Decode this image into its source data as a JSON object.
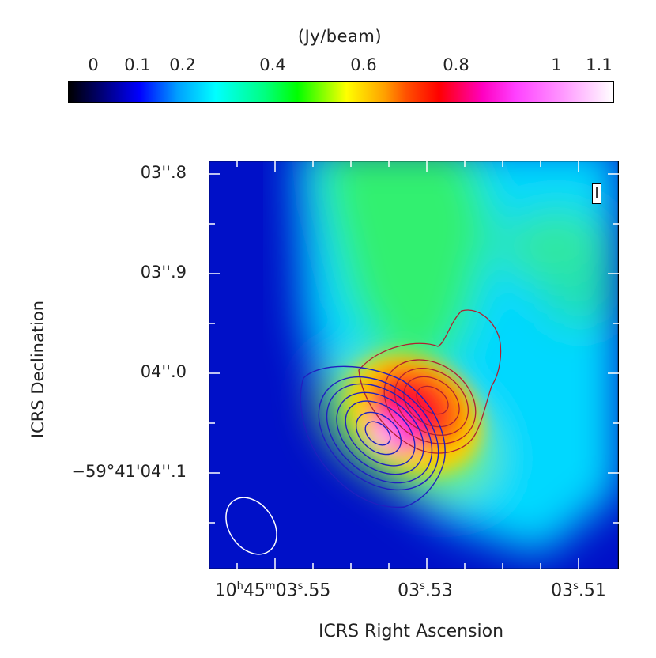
{
  "colorbar": {
    "unit_label": "(Jy/beam)",
    "ticks": [
      "0",
      "0.1",
      "0.2",
      "0.4",
      "0.6",
      "0.8",
      "1",
      "1.1"
    ]
  },
  "map": {
    "stokes_label": "I",
    "y_axis_title": "ICRS Declination",
    "x_axis_title": "ICRS Right Ascension",
    "y_ticks": [
      "03''.8",
      "03''.9",
      "04''.0",
      "−59°41'04''.1"
    ],
    "x_ticks": [
      {
        "h": "10",
        "m": "45",
        "s": "03",
        "frac": ".55"
      },
      {
        "s": "03",
        "frac": ".53"
      },
      {
        "s": "03",
        "frac": ".51"
      }
    ],
    "colors": {
      "background": "#0010c8",
      "red_contour": "#b02030",
      "blue_contour": "#2020c0",
      "beam": "#ffffff"
    }
  }
}
